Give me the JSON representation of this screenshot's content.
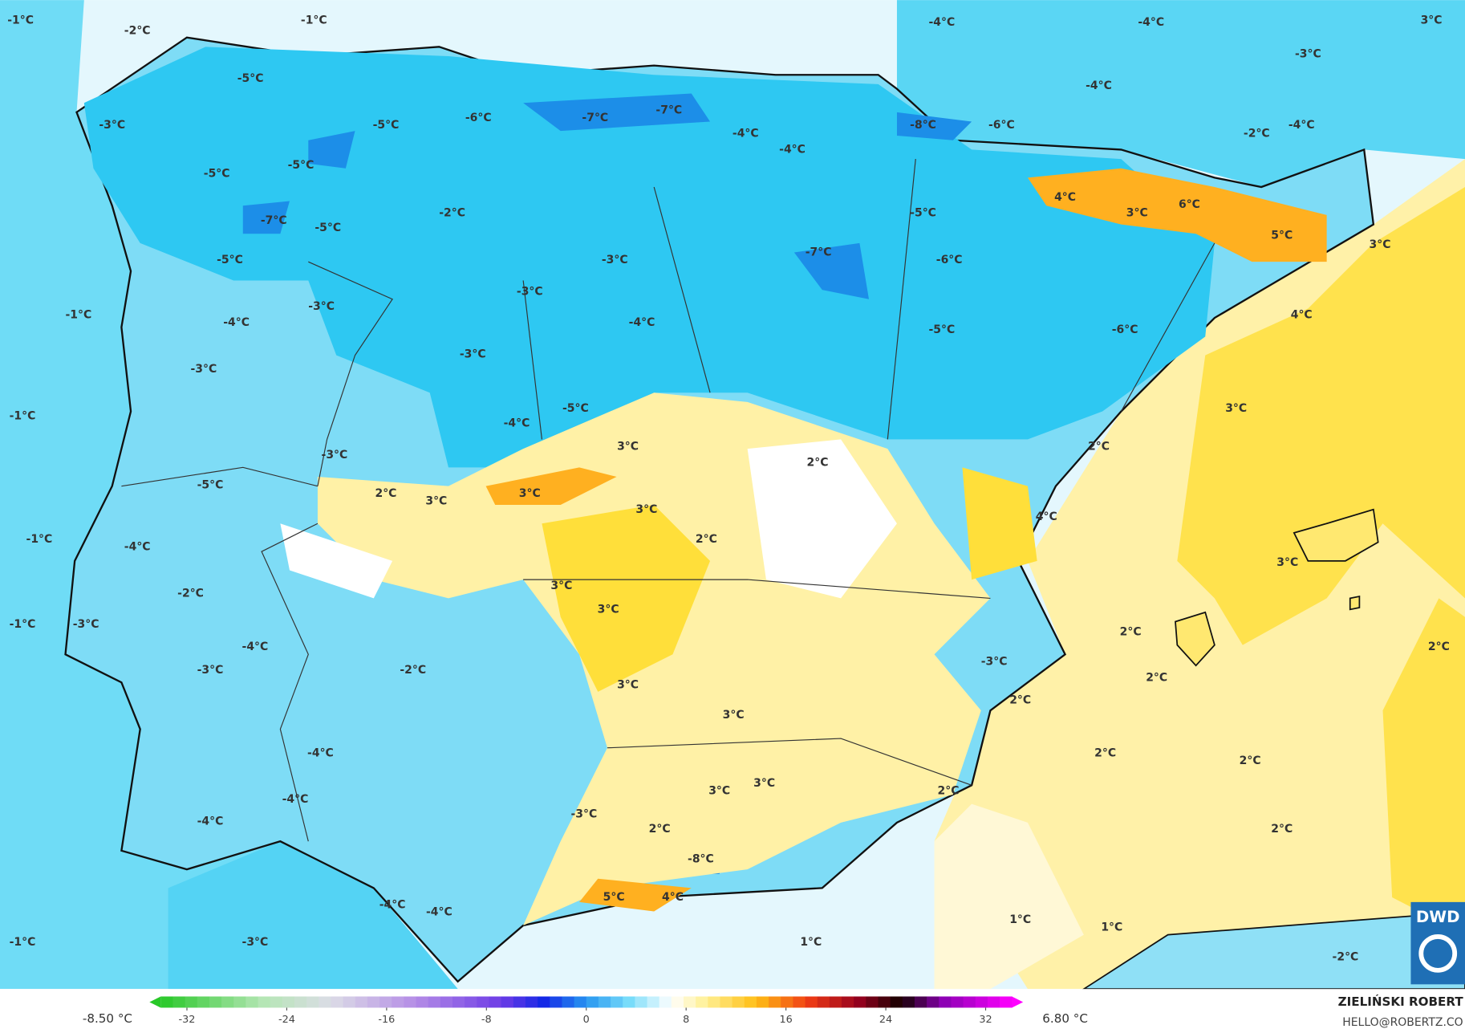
{
  "map": {
    "labels": [
      "-1°C",
      "-2°C",
      "-1°C",
      "-4°C",
      "-4°C",
      "3°C",
      "-5°C",
      "-3°C",
      "-4°C",
      "-3°C",
      "-5°C",
      "-6°C",
      "-7°C",
      "-7°C",
      "-8°C",
      "-6°C",
      "-4°C",
      "-2°C",
      "-4°C",
      "-4°C",
      "-5°C",
      "-5°C",
      "4°C",
      "6°C",
      "3°C",
      "-7°C",
      "-5°C",
      "-2°C",
      "-5°C",
      "5°C",
      "3°C",
      "-5°C",
      "-3°C",
      "-7°C",
      "-6°C",
      "-3°C",
      "-3°C",
      "-1°C",
      "-4°C",
      "-4°C",
      "4°C",
      "-5°C",
      "-6°C",
      "-3°C",
      "-3°C",
      "3°C",
      "-1°C",
      "-5°C",
      "-4°C",
      "-3°C",
      "3°C",
      "2°C",
      "2°C",
      "-5°C",
      "2°C",
      "3°C",
      "3°C",
      "3°C",
      "4°C",
      "-1°C",
      "-4°C",
      "2°C",
      "3°C",
      "3°C",
      "-2°C",
      "-1°C",
      "-3°C",
      "3°C",
      "2°C",
      "-4°C",
      "-2°C",
      "-3°C",
      "-3°C",
      "2°C",
      "2°C",
      "3°C",
      "2°C",
      "3°C",
      "-4°C",
      "2°C",
      "2°C",
      "3°C",
      "3°C",
      "2°C",
      "-4°C",
      "-3°C",
      "-4°C",
      "2°C",
      "2°C",
      "-8°C",
      "5°C",
      "4°C",
      "-4°C",
      "-4°C",
      "1°C",
      "1°C",
      "-1°C",
      "-3°C",
      "1°C",
      "-2°C"
    ],
    "colorbar": {
      "range": [
        -35,
        35
      ],
      "ticks": [
        -32,
        -24,
        -16,
        -8,
        0,
        8,
        16,
        24,
        32
      ],
      "min_label": "-8.50 °C",
      "max_label": "6.80 °C"
    },
    "author": "ZIELIŃSKI ROBERT",
    "contact": "HELLO@ROBERTZ.CO",
    "logo": "DWD"
  }
}
